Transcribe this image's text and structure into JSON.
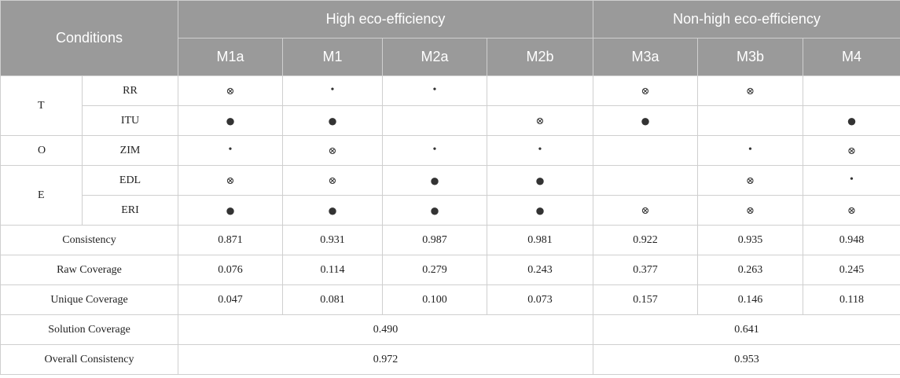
{
  "symbols": {
    "core": "●",
    "peripheral": "•",
    "absent": "⊗",
    "blank": ""
  },
  "header": {
    "conditions": "Conditions",
    "high": "High eco-efficiency",
    "nonhigh": "Non-high eco-efficiency",
    "models": [
      "M1a",
      "M1",
      "M2a",
      "M2b",
      "M3a",
      "M3b",
      "M4"
    ]
  },
  "rows": [
    {
      "group": "T",
      "cond": "RR",
      "cells": [
        "absent",
        "peripheral",
        "peripheral",
        "blank",
        "absent",
        "absent",
        "blank"
      ]
    },
    {
      "group": "",
      "cond": "ITU",
      "cells": [
        "core",
        "core",
        "blank",
        "absent",
        "core",
        "blank",
        "core"
      ]
    },
    {
      "group": "O",
      "cond": "ZIM",
      "cells": [
        "peripheral",
        "absent",
        "peripheral",
        "peripheral",
        "blank",
        "peripheral",
        "absent"
      ]
    },
    {
      "group": "E",
      "cond": "EDL",
      "cells": [
        "absent",
        "absent",
        "core",
        "core",
        "blank",
        "absent",
        "peripheral"
      ]
    },
    {
      "group": "",
      "cond": "ERI",
      "cells": [
        "core",
        "core",
        "core",
        "core",
        "absent",
        "absent",
        "absent"
      ]
    }
  ],
  "stats": [
    {
      "label": "Consistency",
      "values": [
        "0.871",
        "0.931",
        "0.987",
        "0.981",
        "0.922",
        "0.935",
        "0.948"
      ]
    },
    {
      "label": "Raw Coverage",
      "values": [
        "0.076",
        "0.114",
        "0.279",
        "0.243",
        "0.377",
        "0.263",
        "0.245"
      ]
    },
    {
      "label": "Unique Coverage",
      "values": [
        "0.047",
        "0.081",
        "0.100",
        "0.073",
        "0.157",
        "0.146",
        "0.118"
      ]
    }
  ],
  "solution": [
    {
      "label": "Solution Coverage",
      "high": "0.490",
      "nonhigh": "0.641"
    },
    {
      "label": "Overall Consistency",
      "high": "0.972",
      "nonhigh": "0.953"
    }
  ]
}
